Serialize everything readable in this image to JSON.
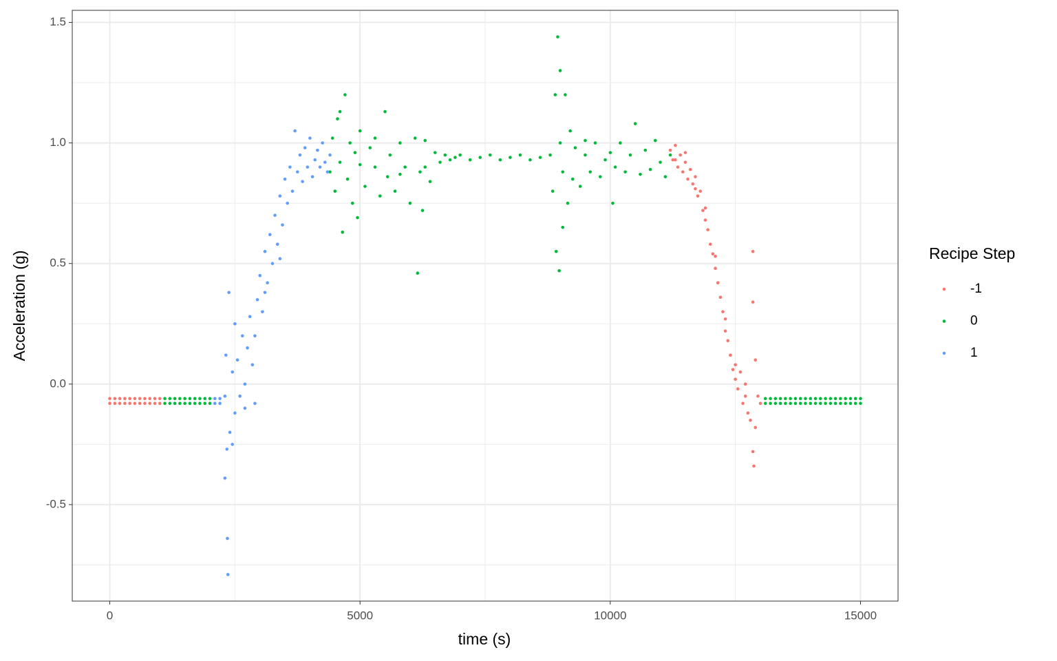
{
  "chart_data": {
    "type": "scatter",
    "x_label": "time (s)",
    "y_label": "Acceleration (g)",
    "legend_title": "Recipe Step",
    "legend": "right",
    "xlim": [
      -750,
      15750
    ],
    "ylim": [
      -0.9,
      1.55
    ],
    "xticks": [
      0,
      5000,
      10000,
      15000
    ],
    "yticks": [
      -0.5,
      {
        "value": 0,
        "label": "0.0"
      },
      0.5,
      {
        "value": 1,
        "label": "1.0"
      },
      1.5
    ],
    "xticks_minor": [
      2500,
      7500,
      12500
    ],
    "yticks_minor": [
      -0.75,
      -0.25,
      0.25,
      0.75,
      1.25
    ],
    "grid": true,
    "series": [
      {
        "name": "-1",
        "color": "#F8766D",
        "x": [
          0,
          0,
          100,
          100,
          200,
          200,
          300,
          300,
          400,
          400,
          500,
          500,
          600,
          600,
          700,
          700,
          800,
          800,
          900,
          900,
          1000,
          1000,
          11200,
          11250,
          11300,
          11350,
          11400,
          11450,
          11500,
          11550,
          11600,
          11650,
          11700,
          11750,
          11800,
          11850,
          11900,
          11950,
          12000,
          12050,
          12100,
          12150,
          12200,
          12250,
          12300,
          12350,
          12400,
          12450,
          12500,
          12550,
          12600,
          12650,
          12700,
          12750,
          12800,
          12850,
          12850,
          12850,
          12870,
          12900,
          12950,
          13000,
          11300,
          11500,
          11700,
          11900,
          12100,
          12300,
          12500,
          12700,
          12900
        ],
        "values": [
          -0.06,
          -0.08,
          -0.06,
          -0.08,
          -0.06,
          -0.08,
          -0.06,
          -0.08,
          -0.06,
          -0.08,
          -0.06,
          -0.08,
          -0.06,
          -0.08,
          -0.06,
          -0.08,
          -0.06,
          -0.08,
          -0.06,
          -0.08,
          -0.06,
          -0.08,
          0.97,
          0.93,
          0.99,
          0.9,
          0.95,
          0.88,
          0.92,
          0.85,
          0.89,
          0.83,
          0.86,
          0.78,
          0.8,
          0.72,
          0.68,
          0.64,
          0.58,
          0.54,
          0.48,
          0.42,
          0.36,
          0.3,
          0.22,
          0.18,
          0.12,
          0.06,
          0.02,
          -0.02,
          0.05,
          -0.08,
          0.0,
          -0.12,
          -0.15,
          -0.28,
          0.55,
          0.34,
          -0.34,
          -0.18,
          -0.05,
          -0.08,
          0.93,
          0.96,
          0.81,
          0.73,
          0.53,
          0.27,
          0.08,
          -0.05,
          0.1
        ]
      },
      {
        "name": "0",
        "color": "#00BA38",
        "x": [
          1100,
          1100,
          1200,
          1200,
          1300,
          1300,
          1400,
          1400,
          1500,
          1500,
          1600,
          1600,
          1700,
          1700,
          1800,
          1800,
          1900,
          1900,
          2000,
          2000,
          4400,
          4450,
          4500,
          4550,
          4600,
          4650,
          4700,
          4750,
          4800,
          4850,
          4900,
          4950,
          5000,
          5100,
          5200,
          5300,
          5400,
          5500,
          5550,
          5600,
          5700,
          5800,
          5900,
          6000,
          6100,
          6150,
          6200,
          6250,
          6300,
          6400,
          6500,
          6600,
          6700,
          6800,
          6900,
          7000,
          7200,
          7400,
          7600,
          7800,
          8000,
          8200,
          8400,
          8600,
          8800,
          8850,
          8900,
          8920,
          8950,
          8980,
          9000,
          9050,
          9100,
          9150,
          9200,
          9250,
          9300,
          9400,
          9500,
          9600,
          9700,
          9800,
          9900,
          10000,
          10050,
          10100,
          10200,
          10300,
          10400,
          10500,
          10600,
          10700,
          10800,
          10900,
          11000,
          11100,
          11200,
          4600,
          5000,
          5300,
          5800,
          6300,
          9000,
          9050,
          9500,
          13100,
          13100,
          13200,
          13200,
          13300,
          13300,
          13400,
          13400,
          13500,
          13500,
          13600,
          13600,
          13700,
          13700,
          13800,
          13800,
          13900,
          13900,
          14000,
          14000,
          14100,
          14100,
          14200,
          14200,
          14300,
          14300,
          14400,
          14400,
          14500,
          14500,
          14600,
          14600,
          14700,
          14700,
          14800,
          14800,
          14900,
          14900,
          15000,
          15000
        ],
        "values": [
          -0.06,
          -0.08,
          -0.06,
          -0.08,
          -0.06,
          -0.08,
          -0.06,
          -0.08,
          -0.06,
          -0.08,
          -0.06,
          -0.08,
          -0.06,
          -0.08,
          -0.06,
          -0.08,
          -0.06,
          -0.08,
          -0.06,
          -0.08,
          0.88,
          1.02,
          0.8,
          1.1,
          0.92,
          0.63,
          1.2,
          0.85,
          1.0,
          0.75,
          0.96,
          0.69,
          1.05,
          0.82,
          0.98,
          0.9,
          0.78,
          1.13,
          0.86,
          0.95,
          0.8,
          1.0,
          0.9,
          0.75,
          1.02,
          0.46,
          0.88,
          0.72,
          1.01,
          0.84,
          0.96,
          0.92,
          0.95,
          0.93,
          0.94,
          0.95,
          0.93,
          0.94,
          0.95,
          0.93,
          0.94,
          0.95,
          0.93,
          0.94,
          0.95,
          0.8,
          1.2,
          0.55,
          1.44,
          0.47,
          1.3,
          0.65,
          1.2,
          0.75,
          1.05,
          0.85,
          0.98,
          0.82,
          0.95,
          0.88,
          1.0,
          0.86,
          0.93,
          0.96,
          0.75,
          0.9,
          1.0,
          0.88,
          0.95,
          1.08,
          0.87,
          0.97,
          0.89,
          1.01,
          0.92,
          0.86,
          0.95,
          1.13,
          0.91,
          1.02,
          0.87,
          0.9,
          1.0,
          0.88,
          1.01,
          -0.06,
          -0.08,
          -0.06,
          -0.08,
          -0.06,
          -0.08,
          -0.06,
          -0.08,
          -0.06,
          -0.08,
          -0.06,
          -0.08,
          -0.06,
          -0.08,
          -0.06,
          -0.08,
          -0.06,
          -0.08,
          -0.06,
          -0.08,
          -0.06,
          -0.08,
          -0.06,
          -0.08,
          -0.06,
          -0.08,
          -0.06,
          -0.08,
          -0.06,
          -0.08,
          -0.06,
          -0.08,
          -0.06,
          -0.08,
          -0.06,
          -0.08,
          -0.06,
          -0.08,
          -0.06,
          -0.08
        ]
      },
      {
        "name": "1",
        "color": "#619CFF",
        "x": [
          2100,
          2100,
          2200,
          2200,
          2300,
          2300,
          2320,
          2340,
          2350,
          2360,
          2380,
          2400,
          2450,
          2500,
          2500,
          2550,
          2600,
          2650,
          2700,
          2750,
          2800,
          2850,
          2900,
          2950,
          3000,
          3050,
          3100,
          3150,
          3200,
          3250,
          3300,
          3350,
          3400,
          3450,
          3500,
          3550,
          3600,
          3650,
          3700,
          3750,
          3800,
          3850,
          3900,
          3950,
          4000,
          4050,
          4100,
          4150,
          4200,
          4250,
          4300,
          4350,
          4400,
          2450,
          2700,
          2900,
          3100,
          3400
        ],
        "values": [
          -0.06,
          -0.08,
          -0.06,
          -0.08,
          -0.39,
          -0.05,
          0.12,
          -0.27,
          -0.64,
          -0.79,
          0.38,
          -0.2,
          0.05,
          -0.12,
          0.25,
          0.1,
          -0.05,
          0.2,
          0.0,
          0.15,
          0.28,
          0.08,
          0.2,
          0.35,
          0.45,
          0.3,
          0.55,
          0.42,
          0.62,
          0.5,
          0.7,
          0.58,
          0.78,
          0.66,
          0.85,
          0.75,
          0.9,
          0.8,
          1.05,
          0.88,
          0.95,
          0.84,
          0.98,
          0.9,
          1.02,
          0.86,
          0.93,
          0.97,
          0.9,
          1.0,
          0.92,
          0.88,
          0.95,
          -0.25,
          -0.1,
          -0.08,
          0.38,
          0.52
        ]
      }
    ]
  }
}
